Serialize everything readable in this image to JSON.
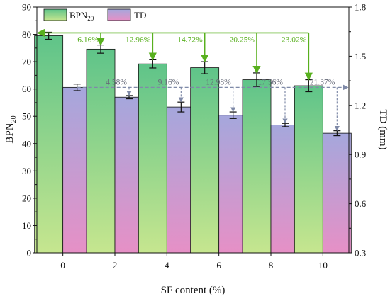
{
  "chart_data": {
    "type": "bar",
    "xlabel": "SF content (%)",
    "ylabel_left": {
      "main": "BPN",
      "sub": "20"
    },
    "ylabel_right": "TD (mm)",
    "categories": [
      "0",
      "2",
      "4",
      "6",
      "8",
      "10"
    ],
    "y_left_lim": [
      0,
      90
    ],
    "y_left_ticks": [
      "0",
      "10",
      "20",
      "30",
      "40",
      "50",
      "60",
      "70",
      "80",
      "90"
    ],
    "y_right_lim": [
      0.3,
      1.8
    ],
    "y_right_ticks": [
      "0.3",
      "0.6",
      "0.9",
      "1.2",
      "1.5",
      "1.8"
    ],
    "series": [
      {
        "name": {
          "main": "BPN",
          "sub": "20"
        },
        "axis": "left",
        "values": [
          79.5,
          74.6,
          69.2,
          67.8,
          63.4,
          61.2
        ],
        "errors": [
          1.3,
          1.5,
          1.5,
          2.2,
          2.5,
          2.2
        ],
        "color_top": "#5fc489",
        "color_bottom": "#c6e68f"
      },
      {
        "name": "TD",
        "axis": "right",
        "values": [
          1.31,
          1.25,
          1.19,
          1.14,
          1.08,
          1.03
        ],
        "errors": [
          0.02,
          0.01,
          0.03,
          0.02,
          0.01,
          0.015
        ],
        "color_top": "#a5a7dc",
        "color_bottom": "#e690c6"
      }
    ],
    "annotations_bpn": [
      "6.16%",
      "12.96%",
      "14.72%",
      "20.25%",
      "23.02%"
    ],
    "annotations_td": [
      "4.58%",
      "9.16%",
      "12.98%",
      "17.56%",
      "21.37%"
    ],
    "annotation_colors": {
      "bpn": "#58b01e",
      "td": "#7f8aa8"
    },
    "legend_position": "top-left",
    "grid": false
  }
}
